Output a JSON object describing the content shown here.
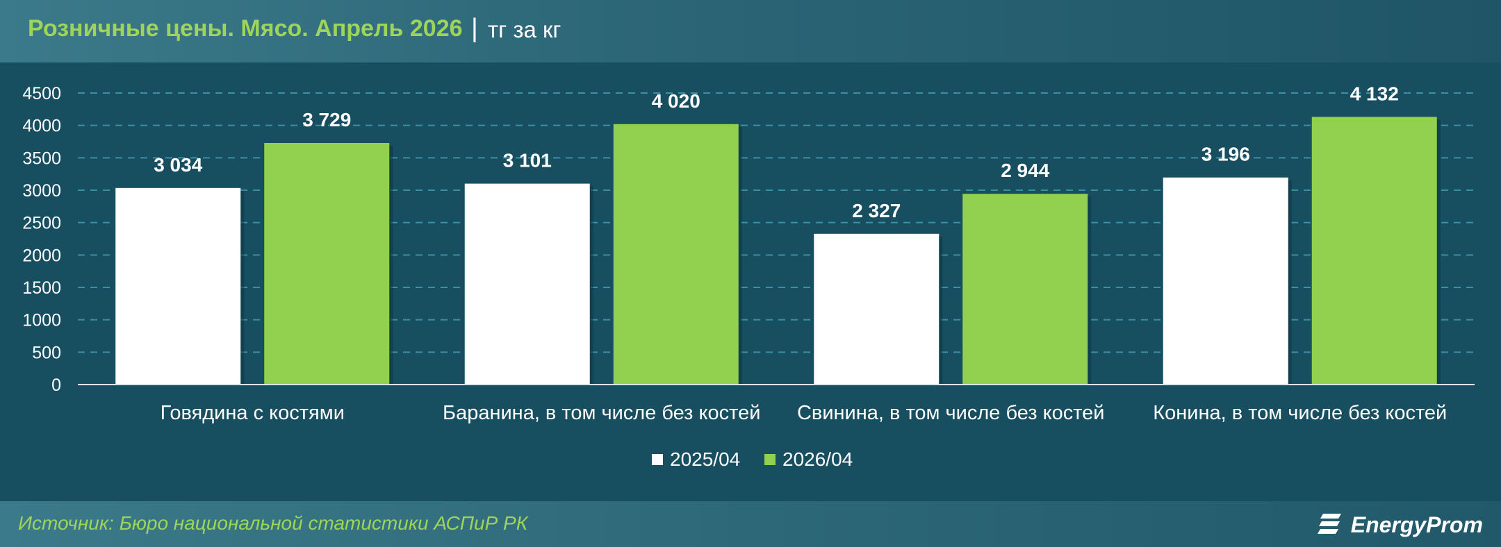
{
  "header": {
    "title": "Розничные цены. Мясо. Апрель 2026",
    "separator": "|",
    "unit": "тг за кг"
  },
  "footer": {
    "source": "Источник: Бюро национальной статистики АСПиР РК",
    "logo_text": "EnergyProm",
    "logo_icon": "energyprom-logo-icon"
  },
  "colors": {
    "background": "#174e60",
    "header_title": "#9ed45a",
    "series_2025": "#ffffff",
    "series_2026": "#92d050",
    "gridline": "#3e8ea5"
  },
  "chart_data": {
    "type": "bar",
    "categories": [
      "Говядина с костями",
      "Баранина, в том числе без костей",
      "Свинина, в том числе без костей",
      "Конина, в том числе без костей"
    ],
    "series": [
      {
        "name": "2025/04",
        "values": [
          3034,
          3101,
          2327,
          3196
        ],
        "labels": [
          "3 034",
          "3 101",
          "2 327",
          "3 196"
        ],
        "color": "#ffffff"
      },
      {
        "name": "2026/04",
        "values": [
          3729,
          4020,
          2944,
          4132
        ],
        "labels": [
          "3 729",
          "4 020",
          "2 944",
          "4 132"
        ],
        "color": "#92d050"
      }
    ],
    "ylim": [
      0,
      4500
    ],
    "yticks": [
      0,
      500,
      1000,
      1500,
      2000,
      2500,
      3000,
      3500,
      4000,
      4500
    ],
    "grid": true,
    "grid_style": "dashed",
    "legend_position": "bottom-center"
  }
}
